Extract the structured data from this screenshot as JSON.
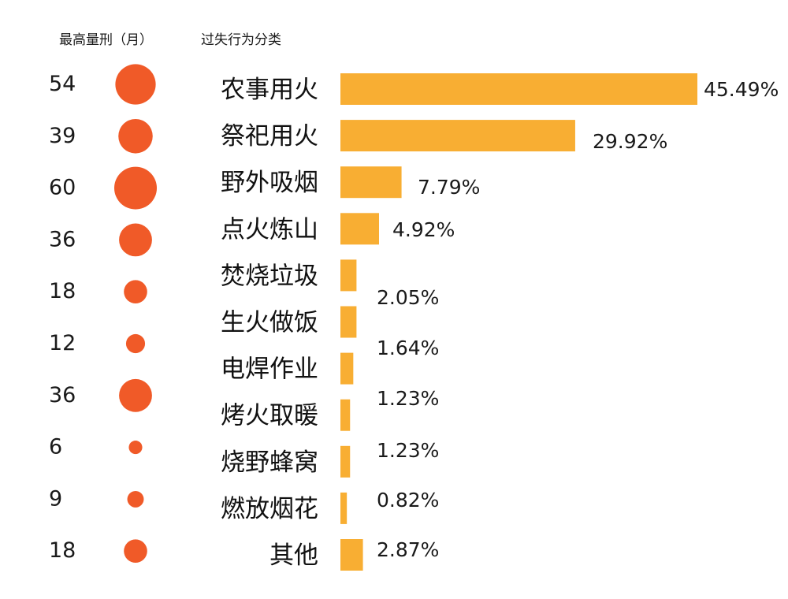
{
  "header": {
    "sentence_label": "最高量刑（月）",
    "category_label": "过失行为分类"
  },
  "colors": {
    "circle": "#F05A28",
    "bar": "#F8AE33",
    "text": "#1a1a1a"
  },
  "chart_data": {
    "type": "bar",
    "orientation": "horizontal",
    "title": "",
    "categories": [
      "农事用火",
      "祭祀用火",
      "野外吸烟",
      "点火炼山",
      "焚烧垃圾",
      "生火做饭",
      "电焊作业",
      "烤火取暖",
      "烧野蜂窝",
      "燃放烟花",
      "其他"
    ],
    "series": [
      {
        "name": "",
        "values": [
          45.49,
          29.92,
          7.79,
          4.92,
          2.05,
          2.05,
          1.64,
          1.23,
          1.23,
          0.82,
          2.87
        ]
      }
    ],
    "value_labels": [
      "45.49%",
      "29.92%",
      "7.79%",
      "4.92%",
      "",
      "2.05%",
      "1.64%",
      "1.23%",
      "1.23%",
      "0.82%",
      "2.87%"
    ],
    "max_sentence_months": [
      54,
      39,
      60,
      36,
      18,
      12,
      36,
      6,
      9,
      18
    ],
    "max_sentence_labels": [
      "54",
      "39",
      "60",
      "36",
      "18",
      "12",
      "36",
      "6",
      "9",
      "18"
    ],
    "xlim": [
      0,
      45.49
    ],
    "grid": false,
    "legend": "none"
  }
}
